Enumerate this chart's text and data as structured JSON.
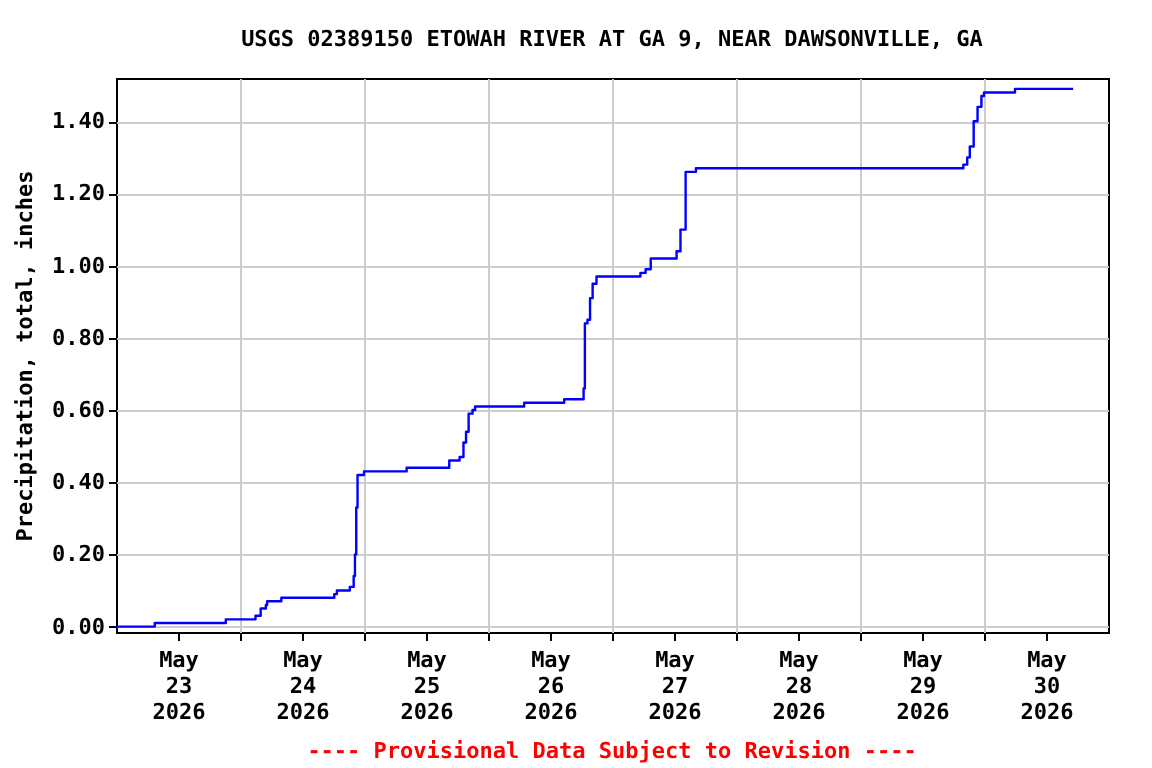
{
  "chart_data": {
    "type": "step",
    "title": "USGS 02389150 ETOWAH RIVER AT GA 9, NEAR DAWSONVILLE, GA",
    "ylabel": "Precipitation, total, inches",
    "annotations": [
      "---- Provisional Data Subject to Revision ----"
    ],
    "x": [
      "2026-05-23T00:00",
      "2026-05-23T07:30",
      "2026-05-23T21:15",
      "2026-05-24T03:00",
      "2026-05-24T04:00",
      "2026-05-24T05:00",
      "2026-05-24T05:15",
      "2026-05-24T08:00",
      "2026-05-24T18:15",
      "2026-05-24T18:45",
      "2026-05-24T21:15",
      "2026-05-24T22:00",
      "2026-05-24T22:15",
      "2026-05-24T22:30",
      "2026-05-24T22:45",
      "2026-05-25T00:00",
      "2026-05-25T08:15",
      "2026-05-25T16:30",
      "2026-05-25T18:30",
      "2026-05-25T19:15",
      "2026-05-25T19:45",
      "2026-05-25T20:15",
      "2026-05-25T21:00",
      "2026-05-25T21:30",
      "2026-05-26T07:00",
      "2026-05-26T14:45",
      "2026-05-26T18:30",
      "2026-05-26T18:45",
      "2026-05-26T19:15",
      "2026-05-26T19:45",
      "2026-05-26T20:15",
      "2026-05-26T21:00",
      "2026-05-27T05:30",
      "2026-05-27T06:30",
      "2026-05-27T07:30",
      "2026-05-27T12:30",
      "2026-05-27T13:15",
      "2026-05-27T14:15",
      "2026-05-27T16:15",
      "2026-05-29T20:00",
      "2026-05-29T20:45",
      "2026-05-29T21:15",
      "2026-05-29T22:00",
      "2026-05-29T22:45",
      "2026-05-29T23:30",
      "2026-05-30T00:00",
      "2026-05-30T06:00",
      "2026-05-30T17:15"
    ],
    "series": [
      {
        "color": "#0000ff",
        "values": [
          0,
          0.01,
          0.02,
          0.03,
          0.05,
          0.06,
          0.07,
          0.08,
          0.09,
          0.1,
          0.11,
          0.14,
          0.2,
          0.33,
          0.42,
          0.43,
          0.44,
          0.46,
          0.47,
          0.51,
          0.54,
          0.59,
          0.6,
          0.61,
          0.62,
          0.63,
          0.66,
          0.84,
          0.85,
          0.91,
          0.95,
          0.97,
          0.98,
          0.99,
          1.02,
          1.04,
          1.1,
          1.26,
          1.27,
          1.28,
          1.3,
          1.33,
          1.4,
          1.44,
          1.47,
          1.48,
          1.49,
          1.49
        ]
      }
    ],
    "xlim": [
      "2026-05-23T00:00",
      "2026-05-31T00:00"
    ],
    "xticks": [
      {
        "value": "2026-05-23T12:00",
        "label": "May 23 2026"
      },
      {
        "value": "2026-05-24T00:00",
        "label": null
      },
      {
        "value": "2026-05-24T12:00",
        "label": "May 24 2026"
      },
      {
        "value": "2026-05-25T00:00",
        "label": null
      },
      {
        "value": "2026-05-25T12:00",
        "label": "May 25 2026"
      },
      {
        "value": "2026-05-26T00:00",
        "label": null
      },
      {
        "value": "2026-05-26T12:00",
        "label": "May 26 2026"
      },
      {
        "value": "2026-05-27T00:00",
        "label": null
      },
      {
        "value": "2026-05-27T12:00",
        "label": "May 27 2026"
      },
      {
        "value": "2026-05-28T00:00",
        "label": null
      },
      {
        "value": "2026-05-28T12:00",
        "label": "May 28 2026"
      },
      {
        "value": "2026-05-29T00:00",
        "label": null
      },
      {
        "value": "2026-05-29T12:00",
        "label": "May 29 2026"
      },
      {
        "value": "2026-05-30T00:00",
        "label": null
      },
      {
        "value": "2026-05-30T12:00",
        "label": "May 30 2026"
      }
    ],
    "ylim": [
      -0.015,
      1.52
    ],
    "yticks": [
      {
        "value": 0,
        "label": "0.00"
      },
      {
        "value": 0.2,
        "label": "0.20"
      },
      {
        "value": 0.4,
        "label": "0.40"
      },
      {
        "value": 0.6,
        "label": "0.60"
      },
      {
        "value": 0.8,
        "label": "0.80"
      },
      {
        "value": 1.0,
        "label": "1.00"
      },
      {
        "value": 1.2,
        "label": "1.20"
      },
      {
        "value": 1.4,
        "label": "1.40"
      }
    ],
    "grid": true
  }
}
